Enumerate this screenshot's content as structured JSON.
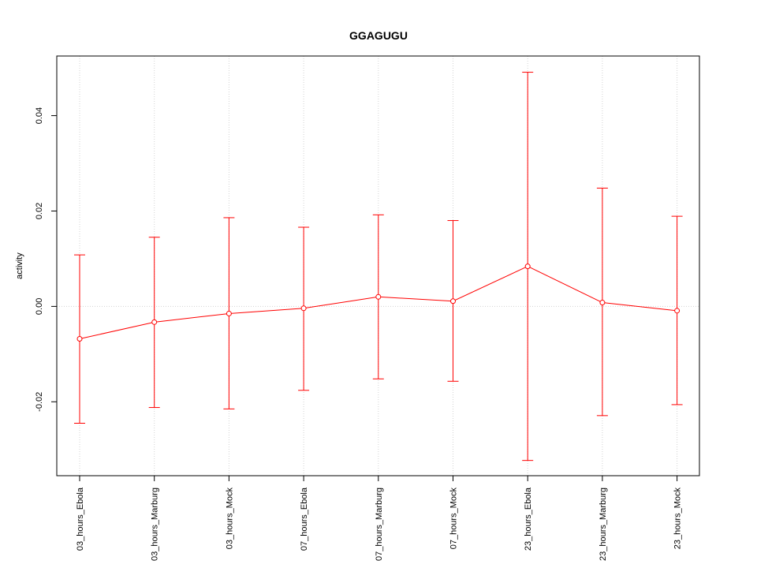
{
  "chart_data": {
    "type": "line",
    "title": "GGAGUGU",
    "xlabel": "",
    "ylabel": "activity",
    "categories": [
      "03_hours_Ebola",
      "03_hours_Marburg",
      "03_hours_Mock",
      "07_hours_Ebola",
      "07_hours_Marburg",
      "07_hours_Mock",
      "23_hours_Ebola",
      "23_hours_Marburg",
      "23_hours_Mock"
    ],
    "series": [
      {
        "values": [
          -0.0068,
          -0.0033,
          -0.0015,
          -0.0004,
          0.002,
          0.0011,
          0.0084,
          0.0008,
          -0.0009
        ],
        "upper": [
          0.0108,
          0.0145,
          0.0186,
          0.0166,
          0.0192,
          0.018,
          0.0491,
          0.0248,
          0.0189
        ],
        "lower": [
          -0.0245,
          -0.0212,
          -0.0215,
          -0.0176,
          -0.0152,
          -0.0157,
          -0.0323,
          -0.0229,
          -0.0206
        ]
      }
    ],
    "yticks": [
      -0.02,
      0.0,
      0.02,
      0.04
    ],
    "ytick_labels": [
      "-0.02",
      "0.00",
      "0.02",
      "0.04"
    ],
    "ylim": [
      -0.0355,
      0.0525
    ],
    "grid": true,
    "colors": {
      "series": "#ff0000",
      "grid": "#d3d3d3",
      "axis": "#000000"
    }
  }
}
